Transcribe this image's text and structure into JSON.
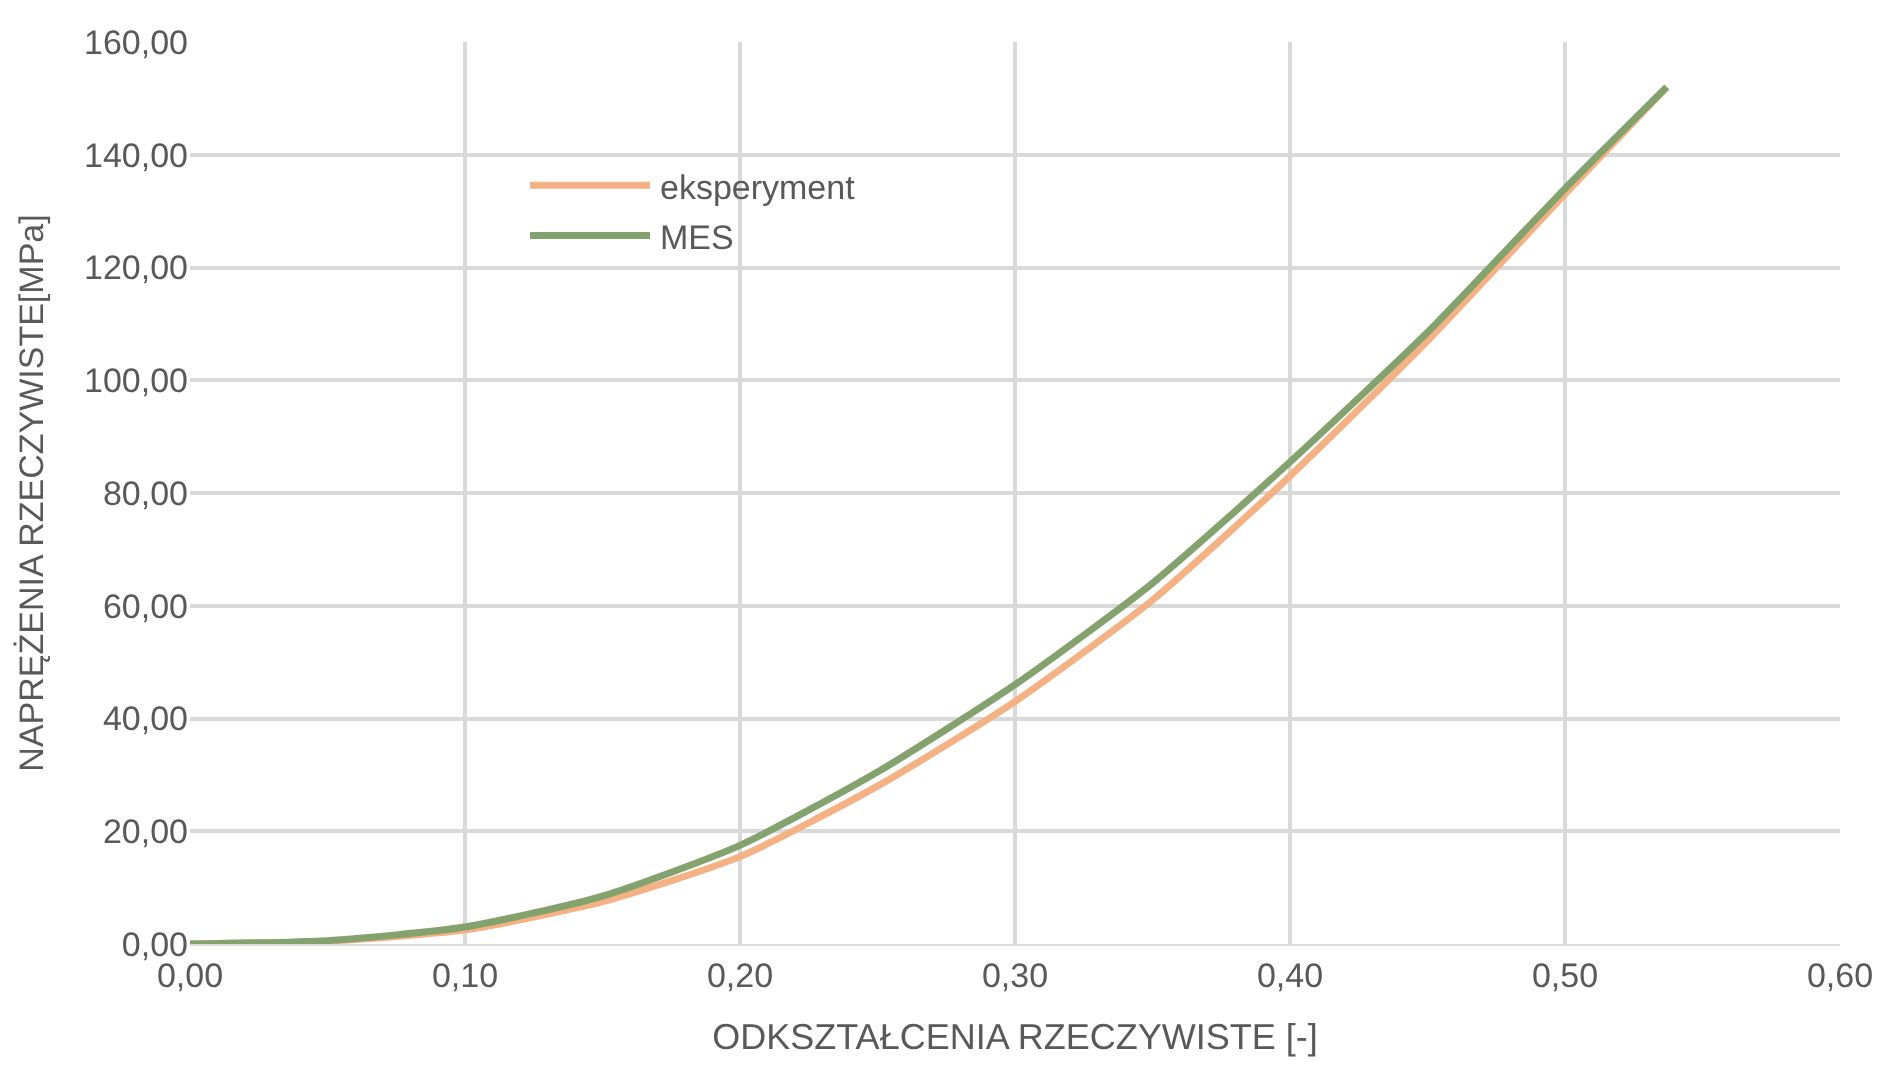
{
  "chart_data": {
    "type": "line",
    "xlabel": "ODKSZTAŁCENIA RZECZYWISTE [-]",
    "ylabel": "NAPRĘŻENIA RZECZYWISTE[MPa]",
    "series": [
      {
        "name": "eksperyment",
        "color": "#f4b183",
        "x": [
          0,
          0.05,
          0.1,
          0.15,
          0.2,
          0.25,
          0.3,
          0.35,
          0.4,
          0.45,
          0.5,
          0.537
        ],
        "values": [
          0,
          0.5,
          2.5,
          7.5,
          15.5,
          28,
          43,
          61,
          83,
          107,
          133,
          152
        ]
      },
      {
        "name": "MES",
        "color": "#84a26e",
        "x": [
          0,
          0.05,
          0.1,
          0.15,
          0.2,
          0.25,
          0.3,
          0.35,
          0.4,
          0.45,
          0.5,
          0.537
        ],
        "values": [
          0,
          0.6,
          3,
          8.5,
          17.5,
          30.5,
          46,
          64,
          85.5,
          108.5,
          134,
          152
        ]
      }
    ],
    "xlim": [
      0,
      0.6
    ],
    "xticks": [
      {
        "value": 0,
        "label": "0,00"
      },
      {
        "value": 0.1,
        "label": "0,10"
      },
      {
        "value": 0.2,
        "label": "0,20"
      },
      {
        "value": 0.3,
        "label": "0,30"
      },
      {
        "value": 0.4,
        "label": "0,40"
      },
      {
        "value": 0.5,
        "label": "0,50"
      },
      {
        "value": 0.6,
        "label": "0,60"
      }
    ],
    "ylim": [
      0,
      160
    ],
    "yticks": [
      {
        "value": 0,
        "label": "0,00"
      },
      {
        "value": 20,
        "label": "20,00"
      },
      {
        "value": 40,
        "label": "40,00"
      },
      {
        "value": 60,
        "label": "60,00"
      },
      {
        "value": 80,
        "label": "80,00"
      },
      {
        "value": 100,
        "label": "100,00"
      },
      {
        "value": 120,
        "label": "120,00"
      },
      {
        "value": 140,
        "label": "140,00"
      },
      {
        "value": 160,
        "label": "160,00"
      }
    ],
    "grid": true,
    "legend": "top left",
    "marker": "none",
    "line_style": "solid"
  }
}
